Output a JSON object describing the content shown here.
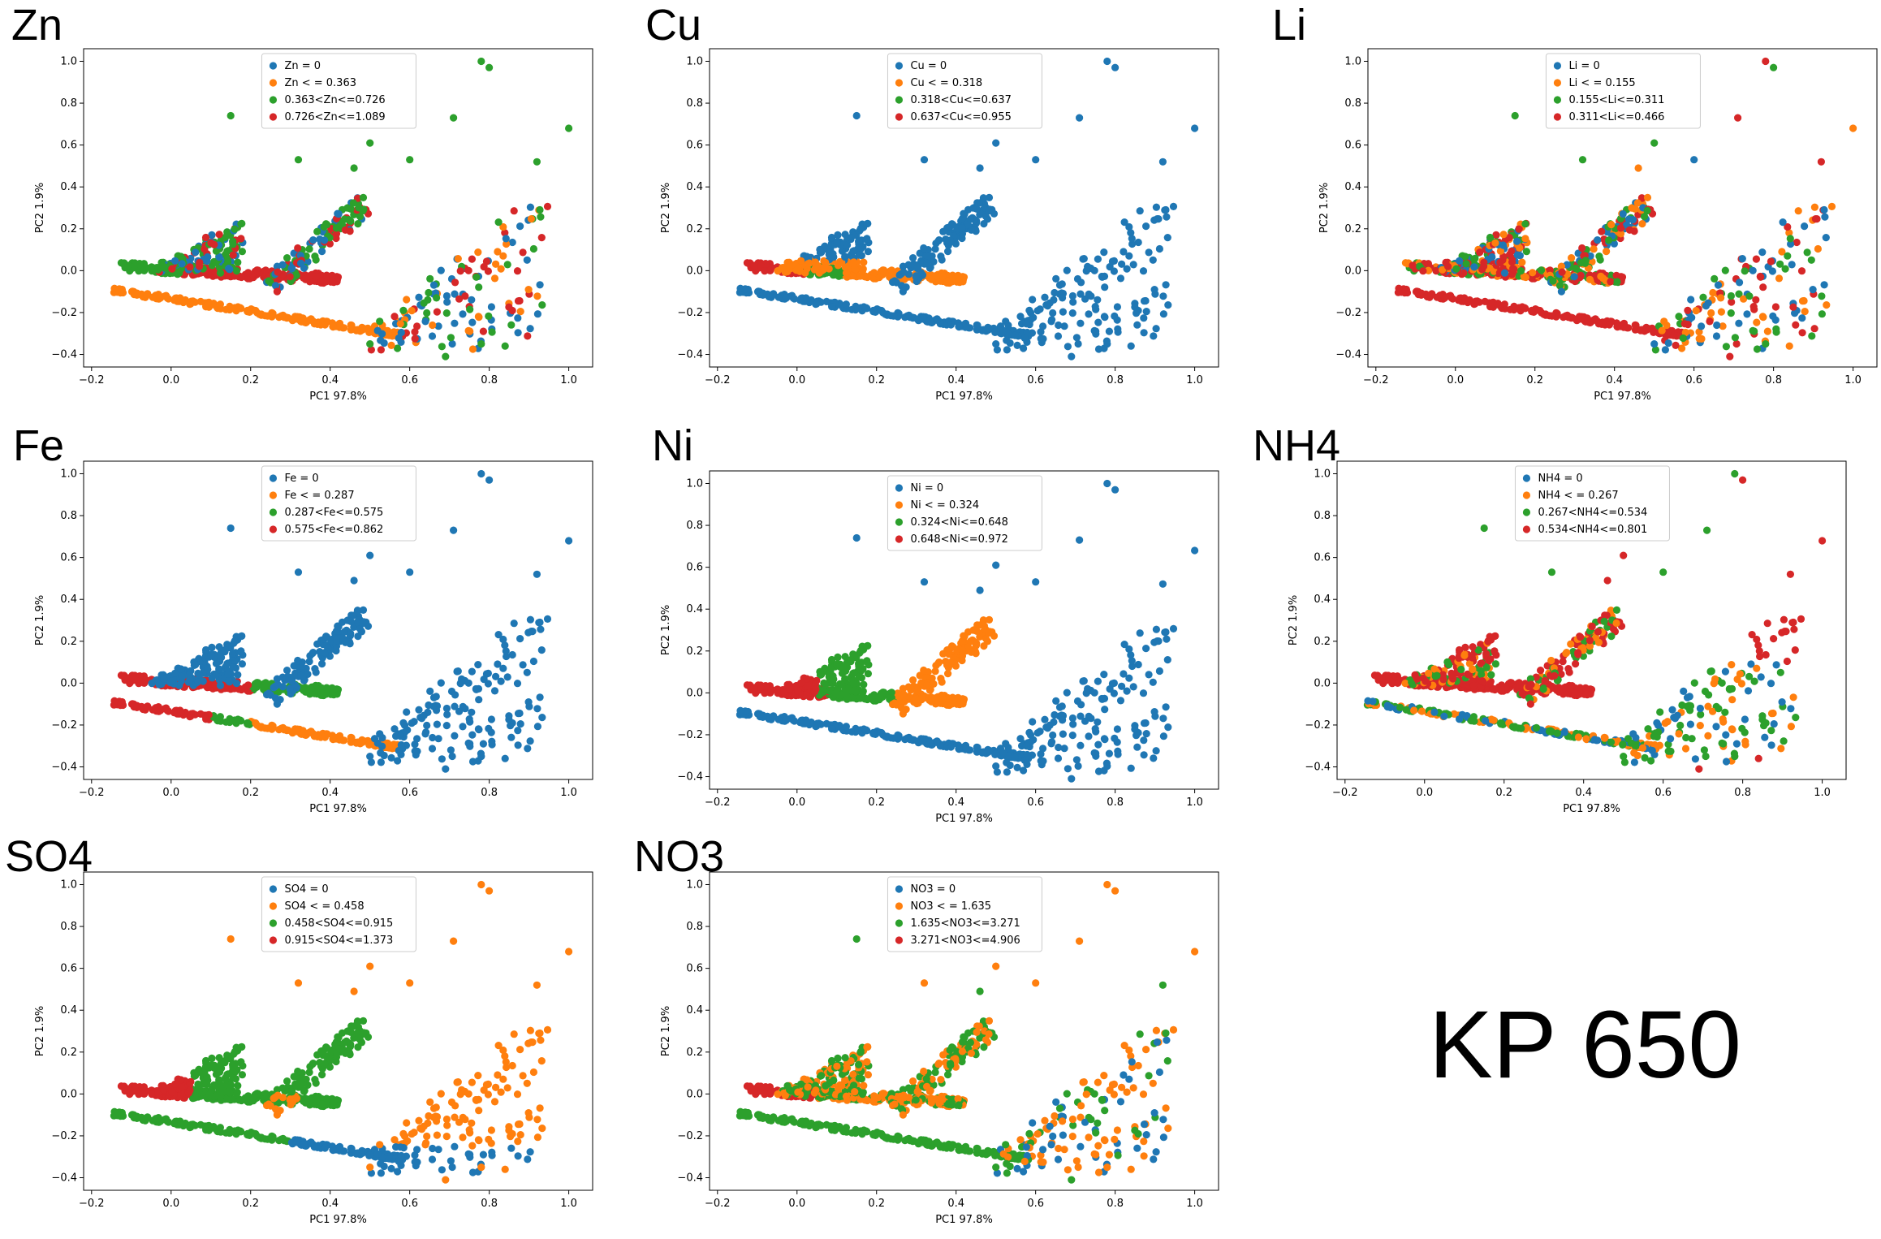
{
  "figure_label": "KP 650",
  "colors": {
    "level0": "#1f77b4",
    "level1": "#ff7f0e",
    "level2": "#2ca02c",
    "level3": "#d62728"
  },
  "chart_data": [
    {
      "id": "zn",
      "type": "scatter",
      "panel_title": "Zn",
      "xlabel": "PC1 97.8%",
      "ylabel": "PC2 1.9%",
      "xlim": [
        -0.22,
        1.06
      ],
      "ylim": [
        -0.46,
        1.06
      ],
      "xticks": [
        "−0.2",
        "0.0",
        "0.2",
        "0.4",
        "0.6",
        "0.8",
        "1.0"
      ],
      "yticks": [
        "−0.4",
        "−0.2",
        "0.0",
        "0.2",
        "0.4",
        "0.6",
        "0.8",
        "1.0"
      ],
      "legend_position": "top-center",
      "legend": [
        "Zn = 0",
        "Zn < = 0.363",
        "0.363<Zn<=0.726",
        "0.726<Zn<=1.089"
      ],
      "pattern": "zn"
    },
    {
      "id": "cu",
      "type": "scatter",
      "panel_title": "Cu",
      "xlabel": "PC1 97.8%",
      "ylabel": "PC2 1.9%",
      "xlim": [
        -0.22,
        1.06
      ],
      "ylim": [
        -0.46,
        1.06
      ],
      "xticks": [
        "−0.2",
        "0.0",
        "0.2",
        "0.4",
        "0.6",
        "0.8",
        "1.0"
      ],
      "yticks": [
        "−0.4",
        "−0.2",
        "0.0",
        "0.2",
        "0.4",
        "0.6",
        "0.8",
        "1.0"
      ],
      "legend_position": "top-center",
      "legend": [
        "Cu = 0",
        "Cu < = 0.318",
        "0.318<Cu<=0.637",
        "0.637<Cu<=0.955"
      ],
      "pattern": "cu"
    },
    {
      "id": "li",
      "type": "scatter",
      "panel_title": "Li",
      "xlabel": "PC1 97.8%",
      "ylabel": "PC2 1.9%",
      "xlim": [
        -0.22,
        1.06
      ],
      "ylim": [
        -0.46,
        1.06
      ],
      "xticks": [
        "−0.2",
        "0.0",
        "0.2",
        "0.4",
        "0.6",
        "0.8",
        "1.0"
      ],
      "yticks": [
        "−0.4",
        "−0.2",
        "0.0",
        "0.2",
        "0.4",
        "0.6",
        "0.8",
        "1.0"
      ],
      "legend_position": "top-center",
      "legend": [
        "Li = 0",
        "Li < = 0.155",
        "0.155<Li<=0.311",
        "0.311<Li<=0.466"
      ],
      "pattern": "li"
    },
    {
      "id": "fe",
      "type": "scatter",
      "panel_title": "Fe",
      "xlabel": "PC1 97.8%",
      "ylabel": "PC2 1.9%",
      "xlim": [
        -0.22,
        1.06
      ],
      "ylim": [
        -0.46,
        1.06
      ],
      "xticks": [
        "−0.2",
        "0.0",
        "0.2",
        "0.4",
        "0.6",
        "0.8",
        "1.0"
      ],
      "yticks": [
        "−0.4",
        "−0.2",
        "0.0",
        "0.2",
        "0.4",
        "0.6",
        "0.8",
        "1.0"
      ],
      "legend_position": "top-center",
      "legend": [
        "Fe = 0",
        "Fe < = 0.287",
        "0.287<Fe<=0.575",
        "0.575<Fe<=0.862"
      ],
      "pattern": "fe"
    },
    {
      "id": "ni",
      "type": "scatter",
      "panel_title": "Ni",
      "xlabel": "PC1 97.8%",
      "ylabel": "PC2 1.9%",
      "xlim": [
        -0.22,
        1.06
      ],
      "ylim": [
        -0.46,
        1.06
      ],
      "xticks": [
        "−0.2",
        "0.0",
        "0.2",
        "0.4",
        "0.6",
        "0.8",
        "1.0"
      ],
      "yticks": [
        "−0.4",
        "−0.2",
        "0.0",
        "0.2",
        "0.4",
        "0.6",
        "0.8",
        "1.0"
      ],
      "legend_position": "top-center",
      "legend": [
        "Ni = 0",
        "Ni < = 0.324",
        "0.324<Ni<=0.648",
        "0.648<Ni<=0.972"
      ],
      "pattern": "ni"
    },
    {
      "id": "nh4",
      "type": "scatter",
      "panel_title": "NH4",
      "xlabel": "PC1 97.8%",
      "ylabel": "PC2 1.9%",
      "xlim": [
        -0.22,
        1.06
      ],
      "ylim": [
        -0.46,
        1.06
      ],
      "xticks": [
        "−0.2",
        "0.0",
        "0.2",
        "0.4",
        "0.6",
        "0.8",
        "1.0"
      ],
      "yticks": [
        "−0.4",
        "−0.2",
        "0.0",
        "0.2",
        "0.4",
        "0.6",
        "0.8",
        "1.0"
      ],
      "legend_position": "top-center",
      "legend": [
        "NH4 = 0",
        "NH4 < = 0.267",
        "0.267<NH4<=0.534",
        "0.534<NH4<=0.801"
      ],
      "pattern": "nh4"
    },
    {
      "id": "so4",
      "type": "scatter",
      "panel_title": "SO4",
      "xlabel": "PC1 97.8%",
      "ylabel": "PC2 1.9%",
      "xlim": [
        -0.22,
        1.06
      ],
      "ylim": [
        -0.46,
        1.06
      ],
      "xticks": [
        "−0.2",
        "0.0",
        "0.2",
        "0.4",
        "0.6",
        "0.8",
        "1.0"
      ],
      "yticks": [
        "−0.4",
        "−0.2",
        "0.0",
        "0.2",
        "0.4",
        "0.6",
        "0.8",
        "1.0"
      ],
      "legend_position": "top-center",
      "legend": [
        "SO4 = 0",
        "SO4 < = 0.458",
        "0.458<SO4<=0.915",
        "0.915<SO4<=1.373"
      ],
      "pattern": "so4"
    },
    {
      "id": "no3",
      "type": "scatter",
      "panel_title": "NO3",
      "xlabel": "PC1 97.8%",
      "ylabel": "PC2 1.9%",
      "xlim": [
        -0.22,
        1.06
      ],
      "ylim": [
        -0.46,
        1.06
      ],
      "xticks": [
        "−0.2",
        "0.0",
        "0.2",
        "0.4",
        "0.6",
        "0.8",
        "1.0"
      ],
      "yticks": [
        "−0.4",
        "−0.2",
        "0.0",
        "0.2",
        "0.4",
        "0.6",
        "0.8",
        "1.0"
      ],
      "legend_position": "top-center",
      "legend": [
        "NO3 = 0",
        "NO3 < = 1.635",
        "1.635<NO3<=3.271",
        "3.271<NO3<=4.906"
      ],
      "pattern": "no3"
    }
  ]
}
